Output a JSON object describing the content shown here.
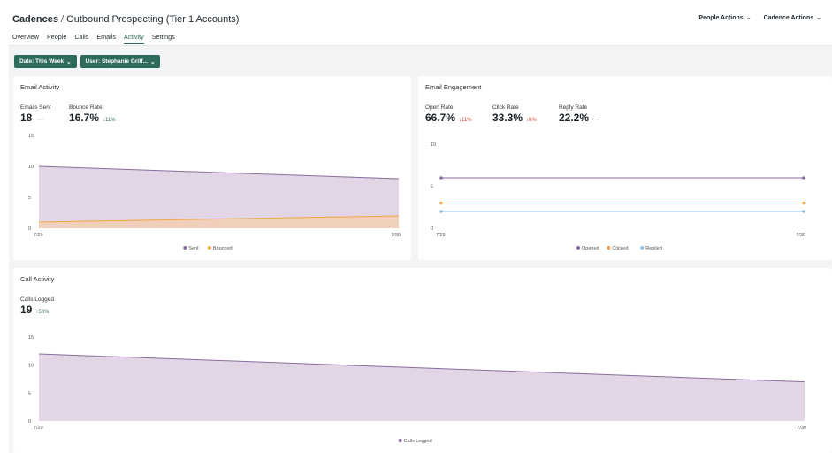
{
  "header": {
    "breadcrumb_root": "Cadences",
    "separator": "/",
    "cadence_name": "Outbound Prospecting (Tier 1 Accounts)",
    "people_actions": "People Actions",
    "cadence_actions": "Cadence Actions"
  },
  "tabs": [
    {
      "label": "Overview",
      "active": false
    },
    {
      "label": "People",
      "active": false
    },
    {
      "label": "Calls",
      "active": false
    },
    {
      "label": "Emails",
      "active": false
    },
    {
      "label": "Activity",
      "active": true
    },
    {
      "label": "Settings",
      "active": false
    }
  ],
  "filters": {
    "date": "Date: This Week",
    "user": "User: Stephanie Griff..."
  },
  "email_activity": {
    "title": "Email Activity",
    "metrics": [
      {
        "label": "Emails Sent",
        "value": "18",
        "delta": "—",
        "trend": "flat"
      },
      {
        "label": "Bounce Rate",
        "value": "16.7%",
        "delta": "↓11%",
        "trend": "down-good"
      }
    ]
  },
  "email_engagement": {
    "title": "Email Engagement",
    "metrics": [
      {
        "label": "Open Rate",
        "value": "66.7%",
        "delta": "↓11%",
        "trend": "down-bad"
      },
      {
        "label": "Click Rate",
        "value": "33.3%",
        "delta": "↓6%",
        "trend": "down-bad"
      },
      {
        "label": "Reply Rate",
        "value": "22.2%",
        "delta": "—",
        "trend": "flat"
      }
    ]
  },
  "call_activity": {
    "title": "Call Activity",
    "metrics": [
      {
        "label": "Calls Logged",
        "value": "19",
        "delta": "↑58%",
        "trend": "up-good"
      }
    ]
  },
  "colors": {
    "accent": "#2e6b5b",
    "purple_line": "#8a6d9d",
    "purple_fill": "#e2d5e6",
    "orange_line": "#f0a640",
    "orange_fill": "#f0cfbb",
    "blue_line": "#91bfe8",
    "down_bad": "#d0452b"
  },
  "chart_data": [
    {
      "type": "area",
      "name": "email-activity",
      "x": [
        "7/29",
        "7/30"
      ],
      "ylim": [
        0,
        15
      ],
      "yticks": [
        0,
        5,
        10,
        15
      ],
      "series": [
        {
          "name": "Sent",
          "values": [
            10,
            8
          ],
          "color": "#8a6d9d",
          "fill": "#e2d5e6"
        },
        {
          "name": "Bounced",
          "values": [
            1,
            2
          ],
          "color": "#f0a640",
          "fill": "#f0cfbb"
        }
      ],
      "legend": "bottom"
    },
    {
      "type": "line",
      "name": "email-engagement",
      "x": [
        "7/29",
        "7/30"
      ],
      "ylim": [
        0,
        10
      ],
      "yticks": [
        0,
        5,
        10
      ],
      "series": [
        {
          "name": "Opened",
          "values": [
            6,
            6
          ],
          "color": "#8a6d9d"
        },
        {
          "name": "Clicked",
          "values": [
            3,
            3
          ],
          "color": "#f0a640"
        },
        {
          "name": "Replied",
          "values": [
            2,
            2
          ],
          "color": "#91bfe8"
        }
      ],
      "legend": "bottom"
    },
    {
      "type": "area",
      "name": "call-activity",
      "x": [
        "7/29",
        "7/30"
      ],
      "ylim": [
        0,
        15
      ],
      "yticks": [
        0,
        5,
        10,
        15
      ],
      "series": [
        {
          "name": "Calls Logged",
          "values": [
            12,
            7
          ],
          "color": "#8a6d9d",
          "fill": "#e2d5e6"
        }
      ],
      "legend": "bottom"
    }
  ]
}
